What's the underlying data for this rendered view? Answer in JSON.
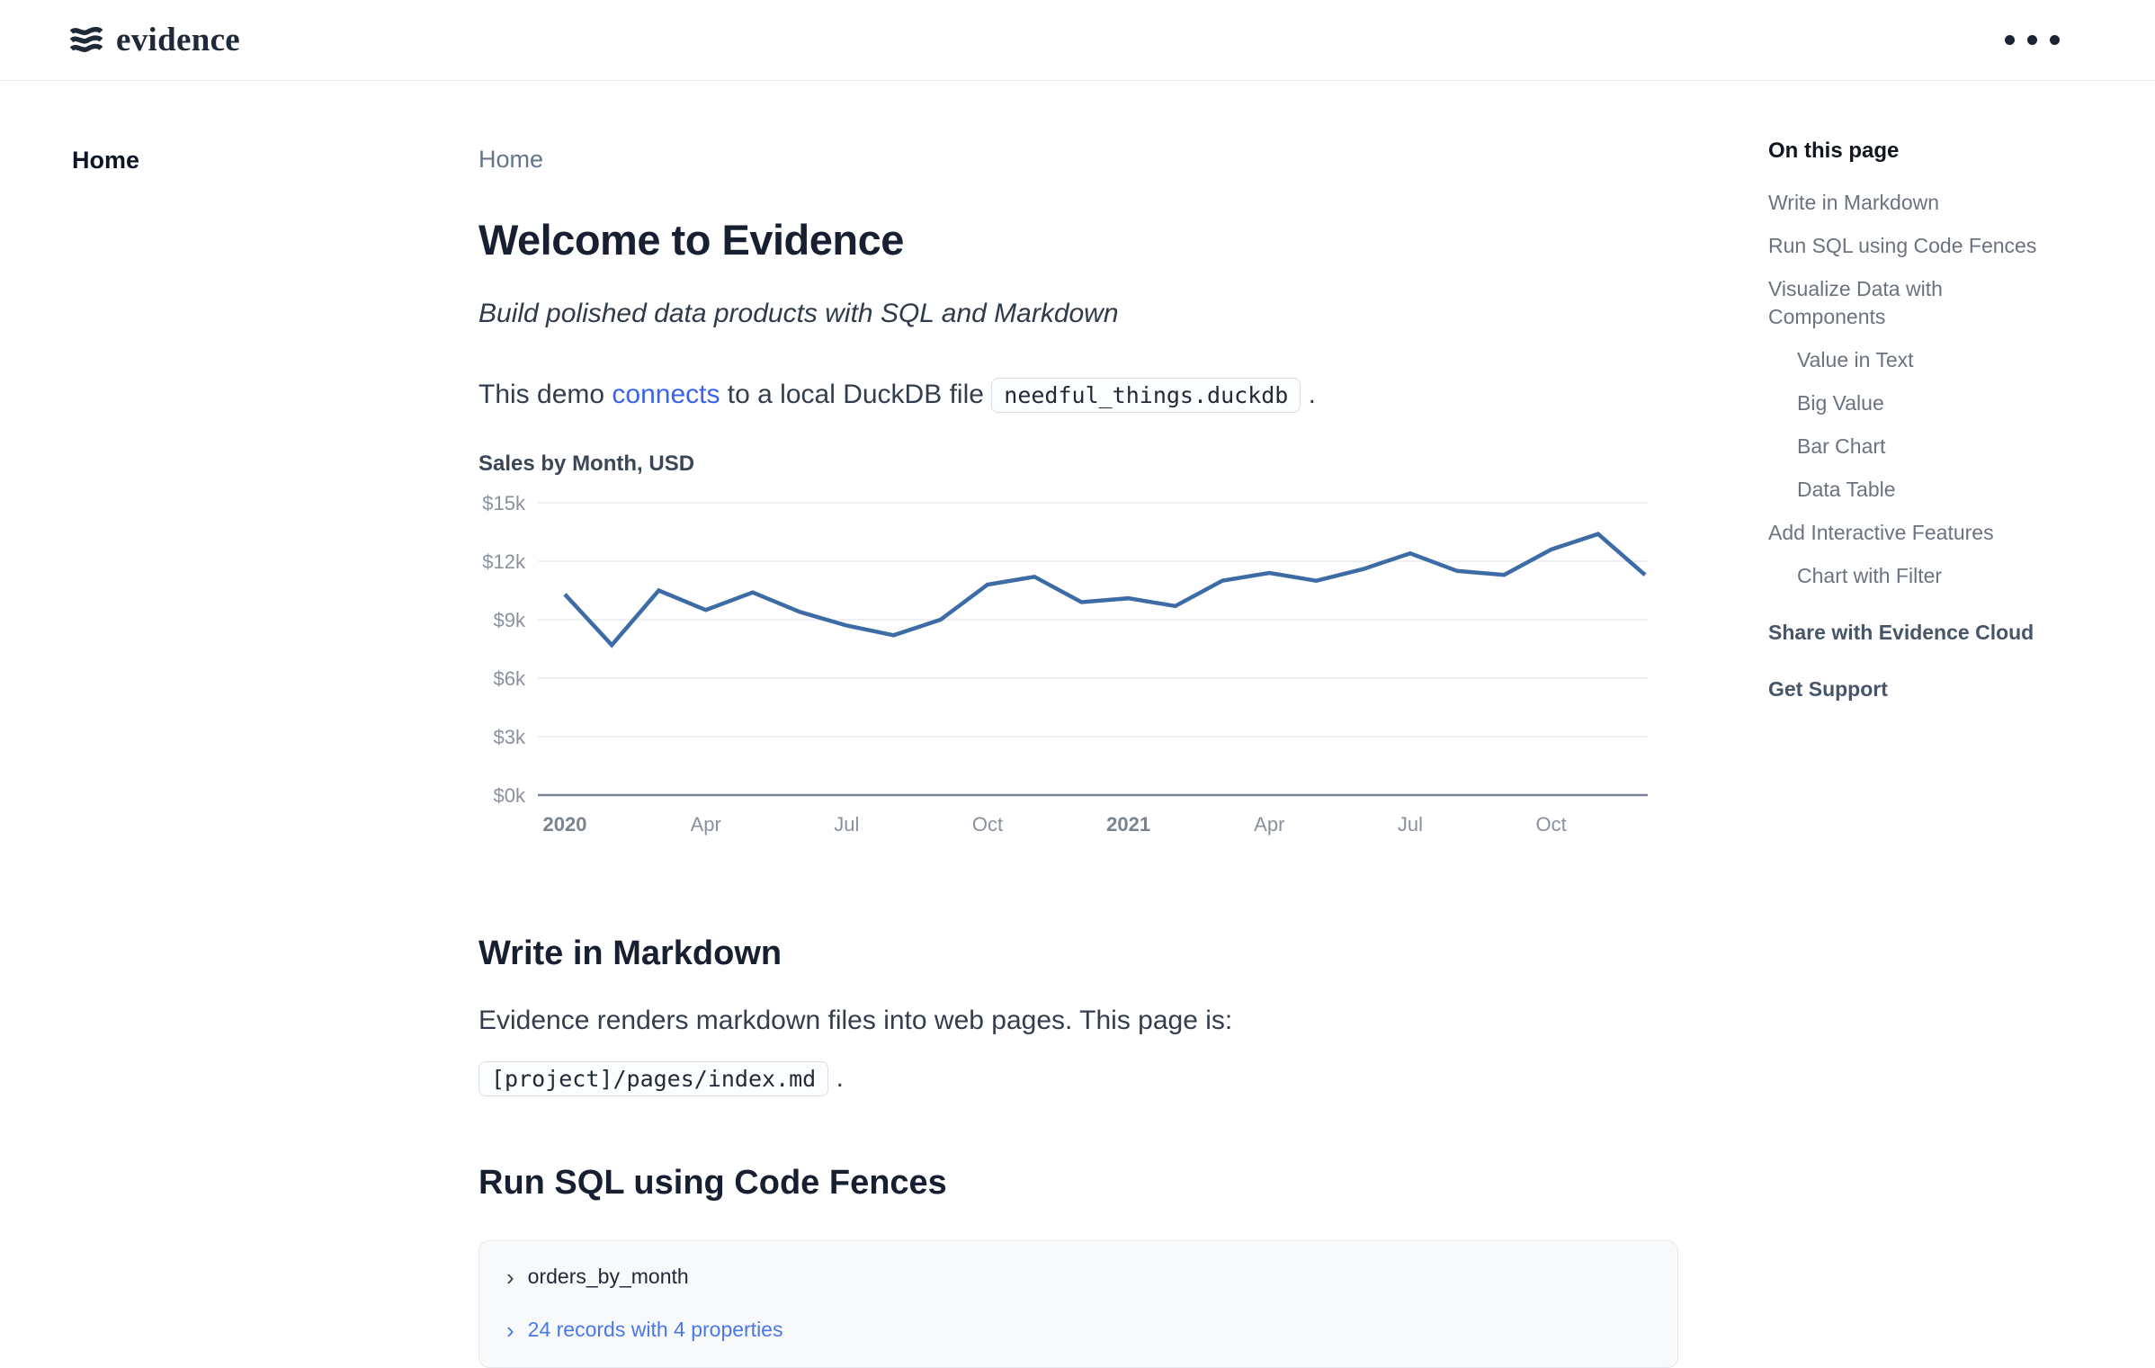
{
  "header": {
    "brand": "evidence"
  },
  "sidebar": {
    "items": [
      {
        "label": "Home",
        "active": true
      }
    ]
  },
  "main": {
    "breadcrumb": "Home",
    "title": "Welcome to Evidence",
    "subtitle": "Build polished data products with SQL and Markdown",
    "intro": {
      "before_link": "This demo ",
      "link": "connects",
      "after_link": " to a local DuckDB file ",
      "code": "needful_things.duckdb",
      "after_code": " ."
    },
    "write_markdown": {
      "heading": "Write in Markdown",
      "body": "Evidence renders markdown files into web pages. This page is:",
      "code": "[project]/pages/index.md",
      "after_code": " ."
    },
    "run_sql": {
      "heading": "Run SQL using Code Fences",
      "query_block": {
        "chevron": "›",
        "query_name": "orders_by_month",
        "result_summary": "24 records with 4 properties"
      }
    }
  },
  "toc": {
    "title": "On this page",
    "items": [
      {
        "label": "Write in Markdown"
      },
      {
        "label": "Run SQL using Code Fences"
      },
      {
        "label": "Visualize Data with Components"
      },
      {
        "label": "Value in Text"
      },
      {
        "label": "Big Value"
      },
      {
        "label": "Bar Chart"
      },
      {
        "label": "Data Table"
      },
      {
        "label": "Add Interactive Features"
      },
      {
        "label": "Chart with Filter"
      },
      {
        "label": "Share with Evidence Cloud"
      },
      {
        "label": "Get Support"
      }
    ]
  },
  "chart_data": {
    "type": "line",
    "title": "Sales by Month, USD",
    "x": [
      "Jan 2020",
      "Feb 2020",
      "Mar 2020",
      "Apr 2020",
      "May 2020",
      "Jun 2020",
      "Jul 2020",
      "Aug 2020",
      "Sep 2020",
      "Oct 2020",
      "Nov 2020",
      "Dec 2020",
      "Jan 2021",
      "Feb 2021",
      "Mar 2021",
      "Apr 2021",
      "May 2021",
      "Jun 2021",
      "Jul 2021",
      "Aug 2021",
      "Sep 2021",
      "Oct 2021",
      "Nov 2021",
      "Dec 2021"
    ],
    "values": [
      10300,
      7700,
      10500,
      9500,
      10400,
      9400,
      8700,
      8200,
      9000,
      10800,
      11200,
      9900,
      10100,
      9700,
      11000,
      11400,
      11000,
      11600,
      12400,
      11500,
      11300,
      12600,
      13400,
      11300
    ],
    "xlabel": "",
    "ylabel": "",
    "ylim": [
      0,
      15000
    ],
    "grid": true,
    "legend": false,
    "y_ticks": [
      {
        "label": "$15k",
        "value": 15000
      },
      {
        "label": "$12k",
        "value": 12000
      },
      {
        "label": "$9k",
        "value": 9000
      },
      {
        "label": "$6k",
        "value": 6000
      },
      {
        "label": "$3k",
        "value": 3000
      },
      {
        "label": "$0k",
        "value": 0
      }
    ],
    "x_ticks": [
      {
        "index": 0,
        "label": "2020",
        "bold": true
      },
      {
        "index": 3,
        "label": "Apr",
        "bold": false
      },
      {
        "index": 6,
        "label": "Jul",
        "bold": false
      },
      {
        "index": 9,
        "label": "Oct",
        "bold": false
      },
      {
        "index": 12,
        "label": "2021",
        "bold": true
      },
      {
        "index": 15,
        "label": "Apr",
        "bold": false
      },
      {
        "index": 18,
        "label": "Jul",
        "bold": false
      },
      {
        "index": 21,
        "label": "Oct",
        "bold": false
      }
    ],
    "line_color": "#3d6ba6",
    "grid_color": "#e8eaee",
    "axis_color": "#7b8494"
  },
  "colors": {
    "accent_link": "#3b63eb",
    "result_link": "#4878e8",
    "heading": "#171f30",
    "brand_navy": "#1e2a38"
  }
}
